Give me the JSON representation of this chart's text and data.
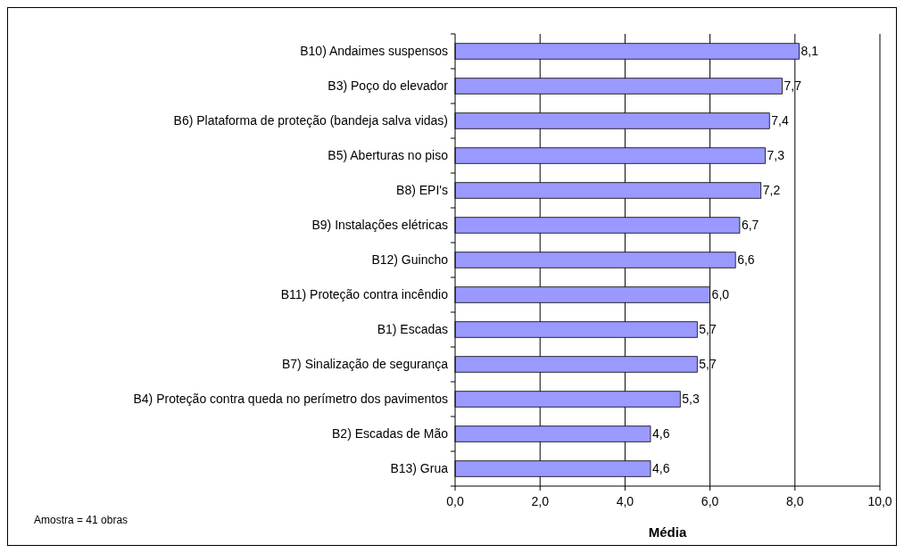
{
  "chart_data": {
    "type": "bar",
    "orientation": "horizontal",
    "xlabel": "Média",
    "categories": [
      "B10) Andaimes suspensos",
      "B3) Poço do elevador",
      "B6) Plataforma de proteção (bandeja salva vidas)",
      "B5) Aberturas no piso",
      "B8) EPI's",
      "B9) Instalações elétricas",
      "B12) Guincho",
      "B11) Proteção contra incêndio",
      "B1) Escadas",
      "B7) Sinalização de segurança",
      "B4) Proteção contra queda no perímetro dos pavimentos",
      "B2) Escadas de Mão",
      "B13) Grua"
    ],
    "values": [
      8.1,
      7.7,
      7.4,
      7.3,
      7.2,
      6.7,
      6.6,
      6.0,
      5.7,
      5.7,
      5.3,
      4.6,
      4.6
    ],
    "value_labels": [
      "8,1",
      "7,7",
      "7,4",
      "7,3",
      "7,2",
      "6,7",
      "6,6",
      "6,0",
      "5,7",
      "5,7",
      "5,3",
      "4,6",
      "4,6"
    ],
    "color": "#9999ff",
    "xlim": [
      0,
      10
    ],
    "xticks": [
      {
        "value": 0,
        "label": "0,0"
      },
      {
        "value": 2,
        "label": "2,0"
      },
      {
        "value": 4,
        "label": "4,0"
      },
      {
        "value": 6,
        "label": "6,0"
      },
      {
        "value": 8,
        "label": "8,0"
      },
      {
        "value": 10,
        "label": "10,0"
      }
    ],
    "grid": "x",
    "annotations": [
      "Amostra = 41 obras"
    ]
  }
}
